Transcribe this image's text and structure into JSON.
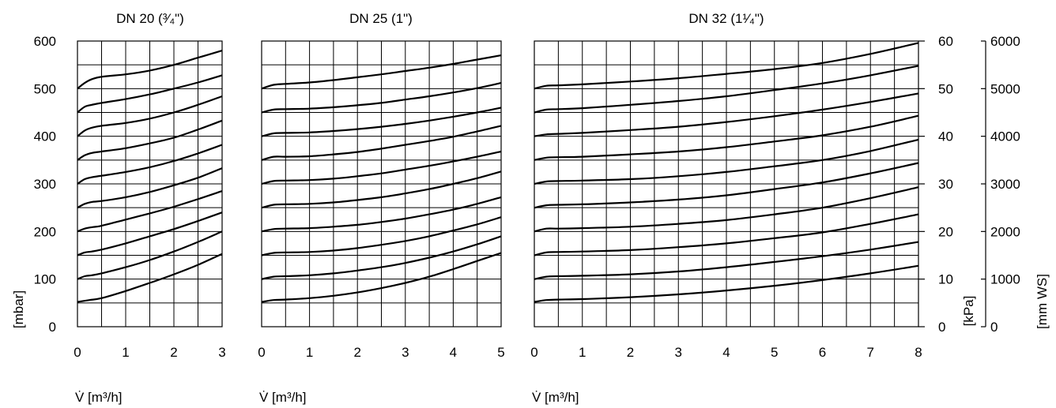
{
  "chart_data": [
    {
      "type": "line",
      "title": "DN 20 (³⁄₄\")",
      "xlabel": "V̇ [m³/h]",
      "xlim": [
        0,
        3
      ],
      "x_ticks": [
        "0",
        "1",
        "2",
        "3"
      ],
      "ylabel": "[mbar]",
      "ylim": [
        0,
        600
      ],
      "y_ticks": [
        "0",
        "100",
        "200",
        "300",
        "400",
        "500",
        "600"
      ],
      "grid": true,
      "series": [
        {
          "x": [
            0,
            0.25,
            0.5,
            1,
            1.5,
            2,
            2.5,
            3
          ],
          "values": [
            52,
            56,
            60,
            75,
            92,
            110,
            130,
            153
          ]
        },
        {
          "x": [
            0,
            0.15,
            0.3,
            0.5,
            1,
            1.5,
            2,
            2.5,
            3
          ],
          "values": [
            100,
            106,
            108,
            112,
            125,
            140,
            158,
            178,
            200
          ]
        },
        {
          "x": [
            0,
            0.15,
            0.3,
            0.5,
            1,
            1.5,
            2,
            2.5,
            3
          ],
          "values": [
            150,
            156,
            158,
            162,
            175,
            190,
            205,
            222,
            240
          ]
        },
        {
          "x": [
            0,
            0.15,
            0.3,
            0.5,
            1,
            1.5,
            2,
            2.5,
            3
          ],
          "values": [
            200,
            206,
            209,
            212,
            225,
            238,
            252,
            268,
            285
          ]
        },
        {
          "x": [
            0,
            0.15,
            0.3,
            0.5,
            1,
            1.5,
            2,
            2.5,
            3
          ],
          "values": [
            250,
            258,
            262,
            264,
            272,
            283,
            297,
            313,
            333
          ]
        },
        {
          "x": [
            0,
            0.15,
            0.3,
            0.5,
            1,
            1.5,
            2,
            2.5,
            3
          ],
          "values": [
            300,
            310,
            314,
            317,
            325,
            335,
            348,
            364,
            382
          ]
        },
        {
          "x": [
            0,
            0.15,
            0.3,
            0.5,
            1,
            1.5,
            2,
            2.5,
            3
          ],
          "values": [
            350,
            360,
            365,
            368,
            375,
            385,
            397,
            414,
            433
          ]
        },
        {
          "x": [
            0,
            0.15,
            0.3,
            0.5,
            1,
            1.5,
            2,
            2.5,
            3
          ],
          "values": [
            400,
            412,
            418,
            422,
            428,
            437,
            450,
            466,
            484
          ]
        },
        {
          "x": [
            0,
            0.15,
            0.3,
            0.5,
            1,
            1.5,
            2,
            2.5,
            3
          ],
          "values": [
            450,
            462,
            466,
            470,
            478,
            488,
            500,
            513,
            528
          ]
        },
        {
          "x": [
            0,
            0.15,
            0.3,
            0.5,
            1,
            1.5,
            2,
            2.5,
            3
          ],
          "values": [
            500,
            512,
            520,
            525,
            530,
            538,
            550,
            565,
            580
          ]
        }
      ]
    },
    {
      "type": "line",
      "title": "DN 25 (1\")",
      "xlabel": "V̇ [m³/h]",
      "xlim": [
        0,
        5
      ],
      "x_ticks": [
        "0",
        "1",
        "2",
        "3",
        "4",
        "5"
      ],
      "ylim": [
        0,
        600
      ],
      "grid": true,
      "series": [
        {
          "x": [
            0,
            0.25,
            0.5,
            1,
            1.5,
            2,
            2.5,
            3,
            3.5,
            4,
            4.5,
            5
          ],
          "values": [
            52,
            56,
            57,
            60,
            65,
            72,
            81,
            92,
            105,
            121,
            138,
            155
          ]
        },
        {
          "x": [
            0,
            0.25,
            0.5,
            1,
            1.5,
            2,
            2.5,
            3,
            3.5,
            4,
            4.5,
            5
          ],
          "values": [
            100,
            105,
            106,
            108,
            112,
            118,
            125,
            134,
            145,
            158,
            173,
            190
          ]
        },
        {
          "x": [
            0,
            0.25,
            0.5,
            1,
            1.5,
            2,
            2.5,
            3,
            3.5,
            4,
            4.5,
            5
          ],
          "values": [
            150,
            155,
            156,
            157,
            160,
            165,
            172,
            180,
            190,
            202,
            215,
            230
          ]
        },
        {
          "x": [
            0,
            0.25,
            0.5,
            1,
            1.5,
            2,
            2.5,
            3,
            3.5,
            4,
            4.5,
            5
          ],
          "values": [
            200,
            205,
            206,
            207,
            210,
            214,
            220,
            227,
            236,
            246,
            258,
            272
          ]
        },
        {
          "x": [
            0,
            0.25,
            0.5,
            1,
            1.5,
            2,
            2.5,
            3,
            3.5,
            4,
            4.5,
            5
          ],
          "values": [
            250,
            256,
            257,
            258,
            261,
            266,
            272,
            280,
            289,
            300,
            312,
            326
          ]
        },
        {
          "x": [
            0,
            0.25,
            0.5,
            1,
            1.5,
            2,
            2.5,
            3,
            3.5,
            4,
            4.5,
            5
          ],
          "values": [
            300,
            306,
            307,
            308,
            311,
            316,
            322,
            330,
            338,
            347,
            357,
            368
          ]
        },
        {
          "x": [
            0,
            0.25,
            0.5,
            1,
            1.5,
            2,
            2.5,
            3,
            3.5,
            4,
            4.5,
            5
          ],
          "values": [
            350,
            357,
            357,
            358,
            362,
            367,
            374,
            382,
            390,
            399,
            410,
            422
          ]
        },
        {
          "x": [
            0,
            0.25,
            0.5,
            1,
            1.5,
            2,
            2.5,
            3,
            3.5,
            4,
            4.5,
            5
          ],
          "values": [
            400,
            406,
            407,
            408,
            411,
            415,
            420,
            426,
            433,
            441,
            450,
            460
          ]
        },
        {
          "x": [
            0,
            0.25,
            0.5,
            1,
            1.5,
            2,
            2.5,
            3,
            3.5,
            4,
            4.5,
            5
          ],
          "values": [
            450,
            456,
            457,
            458,
            461,
            465,
            470,
            477,
            484,
            492,
            501,
            512
          ]
        },
        {
          "x": [
            0,
            0.25,
            0.5,
            1,
            1.5,
            2,
            2.5,
            3,
            3.5,
            4,
            4.5,
            5
          ],
          "values": [
            500,
            508,
            510,
            513,
            518,
            524,
            530,
            537,
            544,
            552,
            561,
            570
          ]
        }
      ]
    },
    {
      "type": "line",
      "title": "DN 32 (1¹⁄₄\")",
      "xlabel": "V̇ [m³/h]",
      "xlim": [
        0,
        8
      ],
      "x_ticks": [
        "0",
        "1",
        "2",
        "3",
        "4",
        "5",
        "6",
        "7",
        "8"
      ],
      "ylim": [
        0,
        600
      ],
      "grid": true,
      "y_right_1": {
        "label": "[kPa]",
        "ticks": [
          "0",
          "10",
          "20",
          "30",
          "40",
          "50",
          "60"
        ]
      },
      "y_right_2": {
        "label": "[mm WS]",
        "ticks": [
          "0",
          "1000",
          "2000",
          "3000",
          "4000",
          "5000",
          "6000"
        ]
      },
      "series": [
        {
          "x": [
            0,
            0.25,
            0.5,
            1,
            2,
            3,
            4,
            5,
            6,
            7,
            8
          ],
          "values": [
            52,
            56,
            57,
            58,
            62,
            68,
            76,
            86,
            98,
            112,
            128
          ]
        },
        {
          "x": [
            0,
            0.25,
            0.5,
            1,
            2,
            3,
            4,
            5,
            6,
            7,
            8
          ],
          "values": [
            100,
            105,
            106,
            107,
            110,
            116,
            125,
            136,
            148,
            162,
            178
          ]
        },
        {
          "x": [
            0,
            0.25,
            0.5,
            1,
            2,
            3,
            4,
            5,
            6,
            7,
            8
          ],
          "values": [
            150,
            156,
            157,
            158,
            161,
            167,
            175,
            186,
            198,
            216,
            236
          ]
        },
        {
          "x": [
            0,
            0.25,
            0.5,
            1,
            2,
            3,
            4,
            5,
            6,
            7,
            8
          ],
          "values": [
            200,
            206,
            206,
            207,
            210,
            216,
            224,
            236,
            250,
            270,
            293
          ]
        },
        {
          "x": [
            0,
            0.25,
            0.5,
            1,
            2,
            3,
            4,
            5,
            6,
            7,
            8
          ],
          "values": [
            250,
            255,
            256,
            257,
            261,
            267,
            276,
            289,
            303,
            322,
            344
          ]
        },
        {
          "x": [
            0,
            0.25,
            0.5,
            1,
            2,
            3,
            4,
            5,
            6,
            7,
            8
          ],
          "values": [
            300,
            305,
            306,
            307,
            310,
            316,
            325,
            337,
            350,
            369,
            393
          ]
        },
        {
          "x": [
            0,
            0.25,
            0.5,
            1,
            2,
            3,
            4,
            5,
            6,
            7,
            8
          ],
          "values": [
            350,
            355,
            356,
            357,
            362,
            368,
            377,
            389,
            402,
            420,
            443
          ]
        },
        {
          "x": [
            0,
            0.25,
            0.5,
            1,
            2,
            3,
            4,
            5,
            6,
            7,
            8
          ],
          "values": [
            400,
            404,
            405,
            407,
            413,
            420,
            430,
            442,
            456,
            472,
            490
          ]
        },
        {
          "x": [
            0,
            0.25,
            0.5,
            1,
            2,
            3,
            4,
            5,
            6,
            7,
            8
          ],
          "values": [
            450,
            456,
            457,
            459,
            466,
            474,
            484,
            497,
            511,
            528,
            548
          ]
        },
        {
          "x": [
            0,
            0.25,
            0.5,
            1,
            2,
            3,
            4,
            5,
            6,
            7,
            8
          ],
          "values": [
            500,
            506,
            507,
            509,
            515,
            522,
            531,
            541,
            554,
            573,
            596
          ]
        }
      ]
    }
  ]
}
